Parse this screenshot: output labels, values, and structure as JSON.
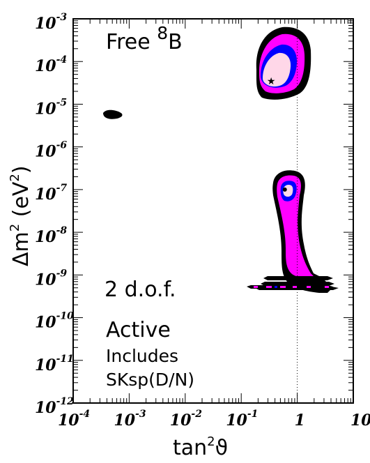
{
  "chart_data": {
    "type": "contour",
    "xlabel": {
      "base": "tan",
      "sup": "2",
      "sym": "ϑ"
    },
    "ylabel": {
      "pre": "Δm",
      "sup1": "2",
      "mid": " (eV",
      "sup2": "2",
      "post": ")"
    },
    "x_scale": "log",
    "y_scale": "log",
    "xlim": [
      0.0001,
      10
    ],
    "ylim": [
      1e-12,
      0.001
    ],
    "x_ticks": [
      {
        "base": "10",
        "exp": "-4",
        "value": 0.0001
      },
      {
        "base": "10",
        "exp": "-3",
        "value": 0.001
      },
      {
        "base": "10",
        "exp": "-2",
        "value": 0.01
      },
      {
        "base": "10",
        "exp": "-1",
        "value": 0.1
      },
      {
        "base": "1",
        "exp": "",
        "value": 1
      },
      {
        "base": "10.",
        "exp": "",
        "value": 10
      }
    ],
    "y_ticks": [
      {
        "base": "10",
        "exp": "-3",
        "value": 0.001
      },
      {
        "base": "10",
        "exp": "-4",
        "value": 0.0001
      },
      {
        "base": "10",
        "exp": "-5",
        "value": 1e-05
      },
      {
        "base": "10",
        "exp": "-6",
        "value": 1e-06
      },
      {
        "base": "10",
        "exp": "-7",
        "value": 1e-07
      },
      {
        "base": "10",
        "exp": "-8",
        "value": 1e-08
      },
      {
        "base": "10",
        "exp": "-9",
        "value": 1e-09
      },
      {
        "base": "10",
        "exp": "-10",
        "value": 1e-10
      },
      {
        "base": "10",
        "exp": "-11",
        "value": 1e-11
      },
      {
        "base": "10",
        "exp": "-12",
        "value": 1e-12
      }
    ],
    "reference_line": {
      "x": 1,
      "style": "dotted"
    },
    "annotations": {
      "top": {
        "pre": "Free ",
        "sup": "8",
        "post": "B"
      },
      "dof": "2 d.o.f.",
      "line1": "Active",
      "line2": "Includes",
      "line3": "SKsp(D/N)"
    },
    "colors": {
      "outer": "#000000",
      "level3": "#ff00ff",
      "level2": "#0000ff",
      "level1": "#ffd7e8",
      "best_fit": "#000000"
    },
    "best_fit_points": [
      {
        "x": 0.33,
        "y": 3.5e-05,
        "marker": "star"
      },
      {
        "x": 0.6,
        "y": 1e-07,
        "marker": "dot"
      },
      {
        "x": 2.2,
        "y": 5e-10,
        "marker": "dot"
      }
    ]
  }
}
